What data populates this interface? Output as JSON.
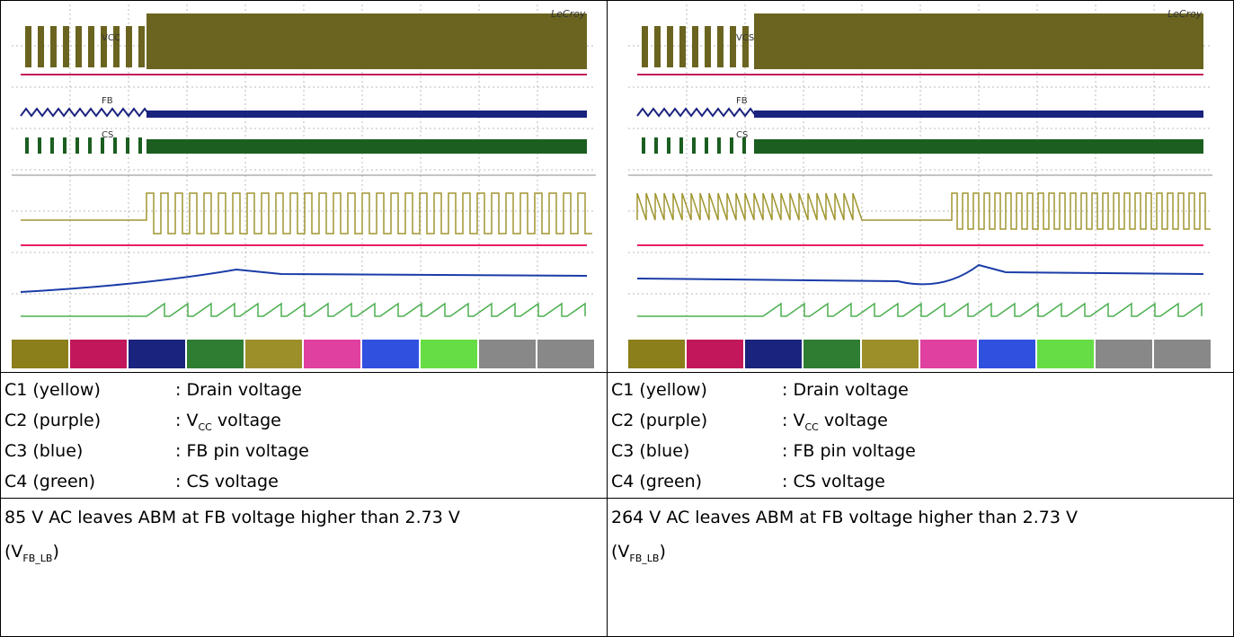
{
  "left": {
    "scope": {
      "brand": "LeCroy",
      "labels": [
        "VCC",
        "FB",
        "CS"
      ]
    },
    "legend": [
      {
        "channel": "C1 (yellow)",
        "desc": ": Drain voltage"
      },
      {
        "channel": "C2 (purple)",
        "desc_pre": ": V",
        "desc_sub": "CC",
        "desc_post": " voltage"
      },
      {
        "channel": "C3 (blue)",
        "desc": ": FB pin voltage"
      },
      {
        "channel": "C4 (green)",
        "desc": ": CS voltage"
      }
    ],
    "note": {
      "text": "85 V AC leaves ABM at FB voltage higher than 2.73 V",
      "pre": "(V",
      "sub": "FB_LB",
      "post": ")"
    }
  },
  "right": {
    "scope": {
      "brand": "LeCroy",
      "labels": [
        "VCS",
        "FB",
        "CS"
      ]
    },
    "legend": [
      {
        "channel": "C1 (yellow)",
        "desc": ": Drain voltage"
      },
      {
        "channel": "C2 (purple)",
        "desc_pre": ": V",
        "desc_sub": "CC",
        "desc_post": " voltage"
      },
      {
        "channel": "C3 (blue)",
        "desc": ": FB pin voltage"
      },
      {
        "channel": "C4 (green)",
        "desc": ": CS voltage"
      }
    ],
    "note": {
      "text": "264 V AC leaves ABM at FB voltage higher than 2.73 V",
      "pre": "(V",
      "sub": "FB_LB",
      "post": ")"
    }
  }
}
